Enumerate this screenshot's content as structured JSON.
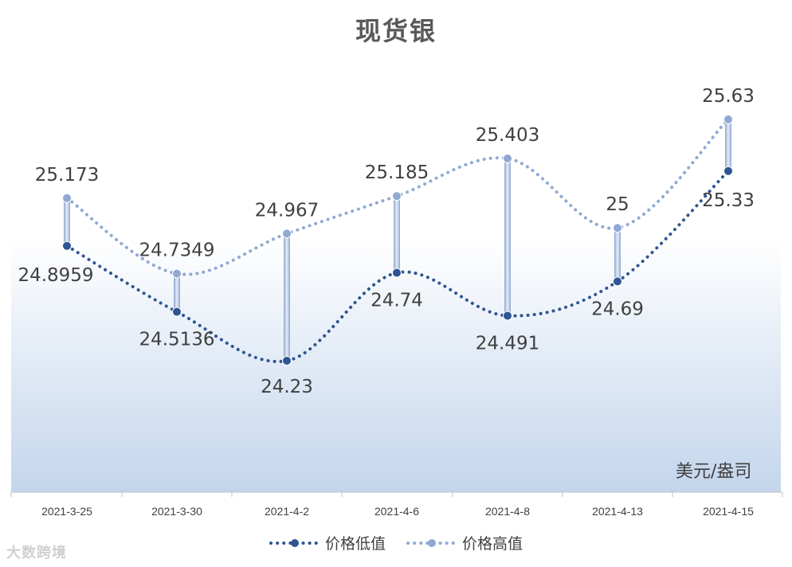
{
  "chart_data": {
    "type": "line",
    "title": "现货银",
    "unit_label": "美元/盎司",
    "categories": [
      "2021-3-25",
      "2021-3-30",
      "2021-4-2",
      "2021-4-6",
      "2021-4-8",
      "2021-4-13",
      "2021-4-15"
    ],
    "series": [
      {
        "name": "价格低值",
        "color": "#2f5592",
        "values": [
          24.8959,
          24.5136,
          24.23,
          24.74,
          24.491,
          24.69,
          25.33
        ],
        "labels": [
          "24.8959",
          "24.5136",
          "24.23",
          "24.74",
          "24.491",
          "24.69",
          "25.33"
        ]
      },
      {
        "name": "价格高值",
        "color": "#8fa9d2",
        "values": [
          25.173,
          24.7349,
          24.967,
          25.185,
          25.403,
          25,
          25.63
        ],
        "labels": [
          "25.173",
          "24.7349",
          "24.967",
          "25.185",
          "25.403",
          "25",
          "25.63"
        ]
      }
    ],
    "drop_lines": true,
    "smooth": true,
    "line_style": "dotted",
    "legend_position": "bottom",
    "grid": false
  },
  "watermark": "大数跨境"
}
